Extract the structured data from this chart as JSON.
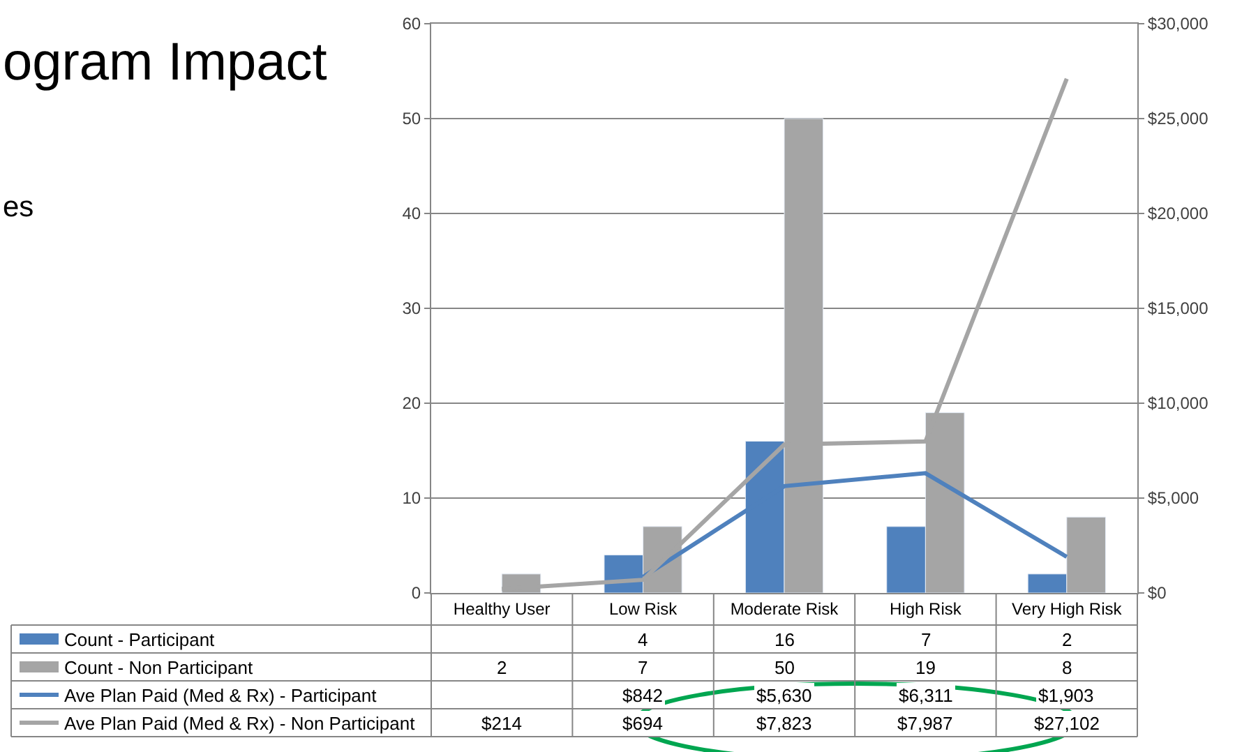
{
  "chart_data": {
    "type": "bar",
    "title": "ogram Impact",
    "subtitle": "es",
    "categories": [
      "Healthy User",
      "Low Risk",
      "Moderate Risk",
      "High Risk",
      "Very High Risk"
    ],
    "series": [
      {
        "name": "Count - Participant",
        "color": "#4f81bd",
        "values": [
          null,
          4,
          16,
          7,
          2
        ],
        "value_labels": [
          null,
          "4",
          "16",
          "7",
          "2"
        ]
      },
      {
        "name": "Count - Non Participant",
        "color": "#a5a5a5",
        "values": [
          2,
          7,
          50,
          19,
          8
        ],
        "value_labels": [
          "2",
          "7",
          "50",
          "19",
          "8"
        ]
      },
      {
        "name": "Ave Plan Paid (Med & Rx) - Participant",
        "type": "line",
        "axis": "y2",
        "color": "#4f81bd",
        "values": [
          null,
          842,
          5630,
          6311,
          1903
        ],
        "value_labels": [
          null,
          "$842",
          "$5,630",
          "$6,311",
          "$1,903"
        ]
      },
      {
        "name": "Ave Plan Paid (Med & Rx) - Non Participant",
        "type": "line",
        "axis": "y2",
        "color": "#a5a5a5",
        "values": [
          214,
          694,
          7823,
          7987,
          27102
        ],
        "value_labels": [
          "$214",
          "$694",
          "$7,823",
          "$7,987",
          "$27,102"
        ]
      }
    ],
    "ylim": [
      0,
      60
    ],
    "yticks": [
      0,
      10,
      20,
      30,
      40,
      50,
      60
    ],
    "y2lim": [
      0,
      30000
    ],
    "y2ticks": [
      {
        "value": 0,
        "label": "$0"
      },
      {
        "value": 5000,
        "label": "$5,000"
      },
      {
        "value": 10000,
        "label": "$10,000"
      },
      {
        "value": 15000,
        "label": "$15,000"
      },
      {
        "value": 20000,
        "label": "$20,000"
      },
      {
        "value": 25000,
        "label": "$25,000"
      },
      {
        "value": 30000,
        "label": "$30,000"
      }
    ],
    "grid": "y",
    "legend": "bottom",
    "marker": "none",
    "line_style": "solid"
  }
}
